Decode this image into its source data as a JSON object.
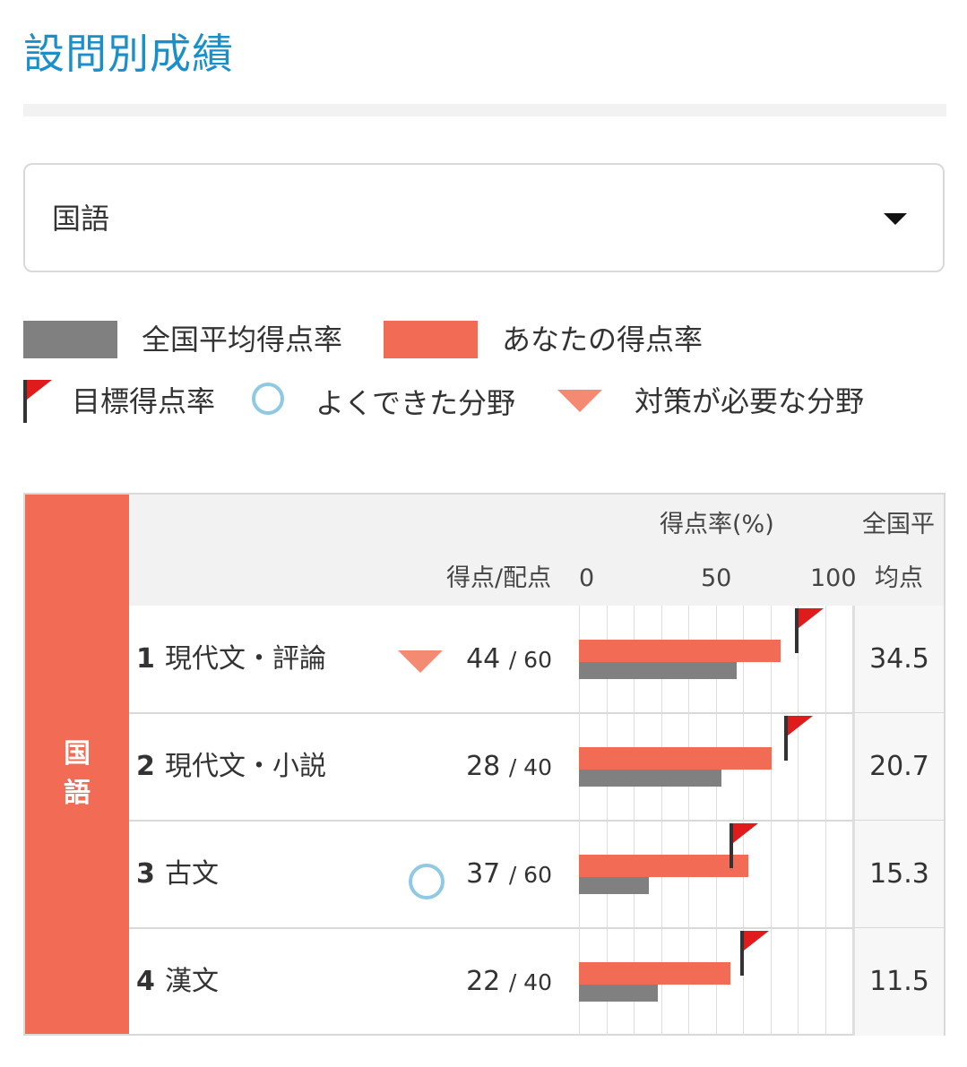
{
  "page": {
    "title": "設問別成績"
  },
  "subject_select": {
    "value": "国語"
  },
  "legend": {
    "national_avg": "全国平均得点率",
    "your_rate": "あなたの得点率",
    "target": "目標得点率",
    "good": "よくできた分野",
    "needs_work": "対策が必要な分野"
  },
  "colors": {
    "your_rate": "#f26b55",
    "national_avg": "#808080",
    "target_flag": "#e01b1b",
    "good_marker": "#8fc9e3",
    "needs_work_marker": "#f48a72",
    "title": "#1a8fc9"
  },
  "table": {
    "subject": "国語",
    "headers": {
      "rate": "得点率(%)",
      "score": "得点/配点",
      "tick0": "0",
      "tick50": "50",
      "tick100": "100",
      "avg_line1": "全国平",
      "avg_line2": "均点"
    },
    "rows": [
      {
        "num": "1",
        "name": "現代文・評論",
        "score": "44",
        "max": "/ 60",
        "avg": "34.5",
        "marker": "needs_work"
      },
      {
        "num": "2",
        "name": "現代文・小説",
        "score": "28",
        "max": "/ 40",
        "avg": "20.7",
        "marker": ""
      },
      {
        "num": "3",
        "name": "古文",
        "score": "37",
        "max": "/ 60",
        "avg": "15.3",
        "marker": "good"
      },
      {
        "num": "4",
        "name": "漢文",
        "score": "22",
        "max": "/ 40",
        "avg": "11.5",
        "marker": ""
      }
    ]
  },
  "chart_data": {
    "type": "bar",
    "title": "得点率(%)",
    "categories": [
      "現代文・評論",
      "現代文・小説",
      "古文",
      "漢文"
    ],
    "series": [
      {
        "name": "あなたの得点率",
        "values": [
          73.3,
          70.0,
          61.7,
          55.0
        ]
      },
      {
        "name": "全国平均得点率",
        "values": [
          57.5,
          51.8,
          25.5,
          28.8
        ]
      },
      {
        "name": "目標得点率",
        "values": [
          80,
          76,
          56,
          60
        ]
      }
    ],
    "xlim": [
      0,
      100
    ],
    "ticks": [
      "0",
      "50",
      "100"
    ]
  }
}
